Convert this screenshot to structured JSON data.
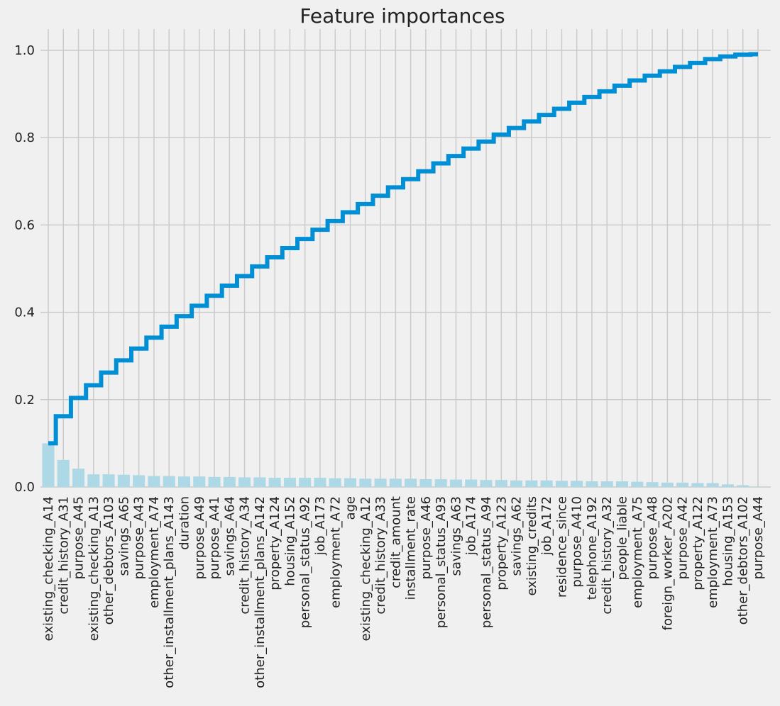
{
  "chart_data": {
    "type": "bar",
    "title": "Feature importances",
    "xlabel": "",
    "ylabel": "",
    "ylim": [
      0,
      1.05
    ],
    "yticks": [
      "0.0",
      "0.2",
      "0.4",
      "0.6",
      "0.8",
      "1.0"
    ],
    "grid": true,
    "colors": {
      "bar": "#add8e6",
      "line": "#008fd5",
      "background": "#f0f0f0",
      "grid": "#cbcbcb"
    },
    "categories": [
      "existing_checking_A14",
      "credit_history_A31",
      "purpose_A45",
      "existing_checking_A13",
      "other_debtors_A103",
      "savings_A65",
      "purpose_A43",
      "employment_A74",
      "other_installment_plans_A143",
      "duration",
      "purpose_A49",
      "purpose_A41",
      "savings_A64",
      "credit_history_A34",
      "other_installment_plans_A142",
      "property_A124",
      "housing_A152",
      "personal_status_A92",
      "job_A173",
      "employment_A72",
      "age",
      "existing_checking_A12",
      "credit_history_A33",
      "credit_amount",
      "installment_rate",
      "purpose_A46",
      "personal_status_A93",
      "savings_A63",
      "job_A174",
      "personal_status_A94",
      "property_A123",
      "savings_A62",
      "existing_credits",
      "job_A172",
      "residence_since",
      "purpose_A410",
      "telephone_A192",
      "credit_history_A32",
      "people_liable",
      "employment_A75",
      "purpose_A48",
      "foreign_worker_A202",
      "purpose_A42",
      "property_A122",
      "employment_A73",
      "housing_A153",
      "other_debtors_A102",
      "purpose_A44"
    ],
    "series": [
      {
        "type": "bar",
        "values": [
          0.1,
          0.062,
          0.042,
          0.029,
          0.029,
          0.028,
          0.027,
          0.025,
          0.025,
          0.024,
          0.024,
          0.023,
          0.023,
          0.022,
          0.022,
          0.021,
          0.021,
          0.021,
          0.021,
          0.02,
          0.02,
          0.019,
          0.019,
          0.019,
          0.019,
          0.018,
          0.018,
          0.017,
          0.017,
          0.016,
          0.016,
          0.015,
          0.015,
          0.015,
          0.014,
          0.014,
          0.013,
          0.013,
          0.013,
          0.012,
          0.011,
          0.01,
          0.01,
          0.009,
          0.009,
          0.006,
          0.004,
          0.001
        ]
      },
      {
        "type": "step",
        "values": [
          0.1,
          0.162,
          0.204,
          0.233,
          0.262,
          0.29,
          0.317,
          0.342,
          0.367,
          0.391,
          0.415,
          0.438,
          0.461,
          0.483,
          0.505,
          0.526,
          0.547,
          0.568,
          0.589,
          0.609,
          0.629,
          0.648,
          0.667,
          0.686,
          0.705,
          0.723,
          0.741,
          0.758,
          0.775,
          0.791,
          0.807,
          0.822,
          0.837,
          0.852,
          0.866,
          0.88,
          0.893,
          0.906,
          0.919,
          0.931,
          0.942,
          0.952,
          0.962,
          0.971,
          0.98,
          0.986,
          0.99,
          0.991
        ]
      }
    ]
  }
}
